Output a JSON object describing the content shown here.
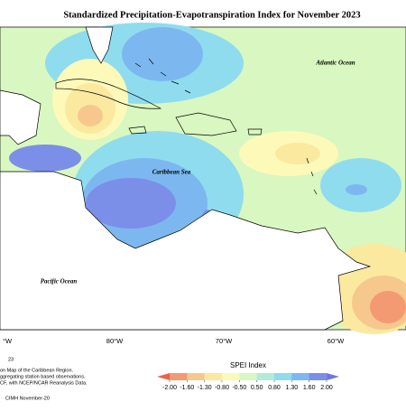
{
  "header": {
    "title": "Standardized Precipitation-Evapotranspiration Index for November 2023"
  },
  "map": {
    "labels": [
      "Atlantic Ocean",
      "Caribbean Sea",
      "Pacific Ocean"
    ],
    "longitudes": [
      "°W",
      "80°W",
      "70°W",
      "60°W"
    ]
  },
  "legend": {
    "title": "SPEI Index",
    "ticks": [
      {
        "value": -2,
        "label": "-2.00"
      },
      {
        "value": -1.6,
        "label": "-1.60"
      },
      {
        "value": -1.3,
        "label": "-1.30"
      },
      {
        "value": -0.8,
        "label": "-0.80"
      },
      {
        "value": -0.5,
        "label": "-0.50"
      },
      {
        "value": 0.5,
        "label": "0.50"
      },
      {
        "value": 0.8,
        "label": "0.80"
      },
      {
        "value": 1.3,
        "label": "1.30"
      },
      {
        "value": 1.6,
        "label": "1.60"
      },
      {
        "value": 2,
        "label": "2.00"
      }
    ],
    "colors": [
      "#e8654a",
      "#f39a73",
      "#f7c88e",
      "#fbe9a0",
      "#fdf9b9",
      "#d9f7c0",
      "#b2ecd9",
      "#8fdcef",
      "#7cb8ef",
      "#7b8fe8",
      "#6f75e3"
    ]
  },
  "notes": [
    "23",
    "on Map of the Caribbean Region.",
    "ggregating station based observations.",
    "CF, with NCEP/NCAR Reanalysis Data.",
    "CIMH November-20"
  ]
}
